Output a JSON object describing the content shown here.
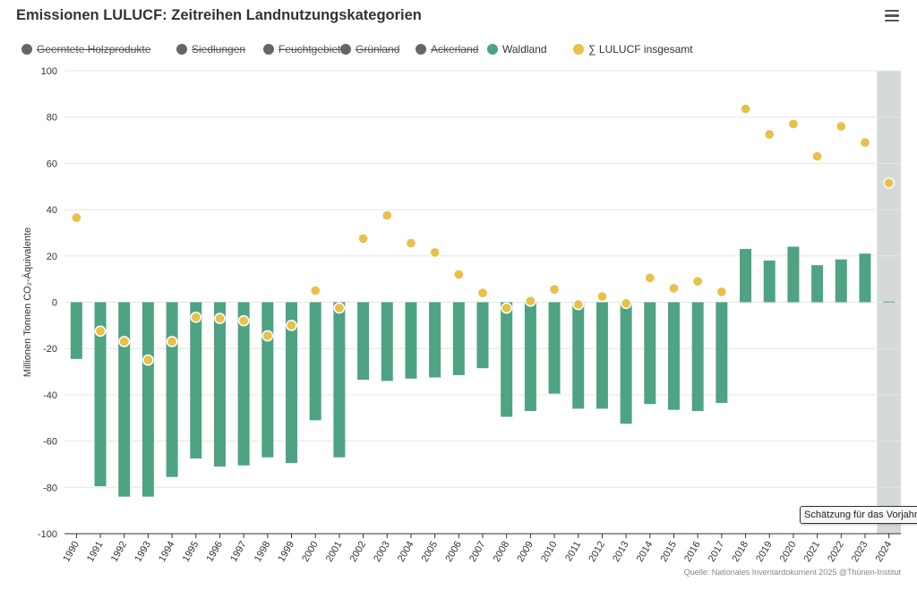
{
  "title": "Emissionen LULUCF: Zeitreihen Landnutzungskategorien",
  "menu_icon": "hamburger-menu-icon",
  "legend": [
    {
      "label": "Geerntete Holzprodukte",
      "color": "#666666",
      "hidden": true
    },
    {
      "label": "Siedlungen",
      "color": "#666666",
      "hidden": true
    },
    {
      "label": "Feuchtgebiete",
      "color": "#666666",
      "hidden": true
    },
    {
      "label": "Grünland",
      "color": "#666666",
      "hidden": true
    },
    {
      "label": "Ackerland",
      "color": "#666666",
      "hidden": true
    },
    {
      "label": "Waldland",
      "color": "#4ea383",
      "hidden": false
    },
    {
      "label": "∑ LULUCF insgesamt",
      "color": "#e8c04a",
      "hidden": false
    }
  ],
  "source": "Quelle: Nationales Inventardokument 2025 @Thünen-Institut",
  "tooltip": "Schätzung für das Vorjahr",
  "chart_data": {
    "type": "bar",
    "title": "Emissionen LULUCF: Zeitreihen Landnutzungskategorien",
    "ylabel": "Millionen Tonnen CO₂-Äquivalente",
    "xlabel": "",
    "ylim": [
      -100,
      100
    ],
    "yticks": [
      100,
      80,
      60,
      40,
      20,
      0,
      -20,
      -40,
      -60,
      -80,
      -100
    ],
    "grid": true,
    "legend_position": "top",
    "highlighted_category": "2024",
    "categories": [
      "1990",
      "1991",
      "1992",
      "1993",
      "1994",
      "1995",
      "1996",
      "1997",
      "1998",
      "1999",
      "2000",
      "2001",
      "2002",
      "2003",
      "2004",
      "2005",
      "2006",
      "2007",
      "2008",
      "2009",
      "2010",
      "2011",
      "2012",
      "2013",
      "2014",
      "2015",
      "2016",
      "2017",
      "2018",
      "2019",
      "2020",
      "2021",
      "2022",
      "2023",
      "2024"
    ],
    "series": [
      {
        "name": "Waldland",
        "type": "bar",
        "color": "#4ea383",
        "values": [
          -24.5,
          -79.5,
          -84,
          -84,
          -75.5,
          -67.5,
          -71,
          -70.5,
          -67,
          -69.5,
          -51,
          -67,
          -33.5,
          -34,
          -33,
          -32.5,
          -31.5,
          -28.5,
          -49.5,
          -47,
          -39.5,
          -46,
          -46,
          -52.5,
          -44,
          -46.5,
          -47,
          -43.5,
          23,
          18,
          24,
          16,
          18.5,
          21,
          0.3
        ]
      },
      {
        "name": "∑ LULUCF insgesamt",
        "type": "scatter",
        "color": "#e8c04a",
        "values": [
          36.5,
          -12.5,
          -17,
          -25,
          -17,
          -6.5,
          -7,
          -8,
          -14.5,
          -10,
          5,
          -2.5,
          27.5,
          37.5,
          25.5,
          21.5,
          12,
          4,
          -2.5,
          0.5,
          5.5,
          -1,
          2.5,
          -0.5,
          10.5,
          6,
          9,
          4.5,
          83.5,
          72.5,
          77,
          63,
          76,
          69,
          51.5
        ]
      }
    ]
  }
}
